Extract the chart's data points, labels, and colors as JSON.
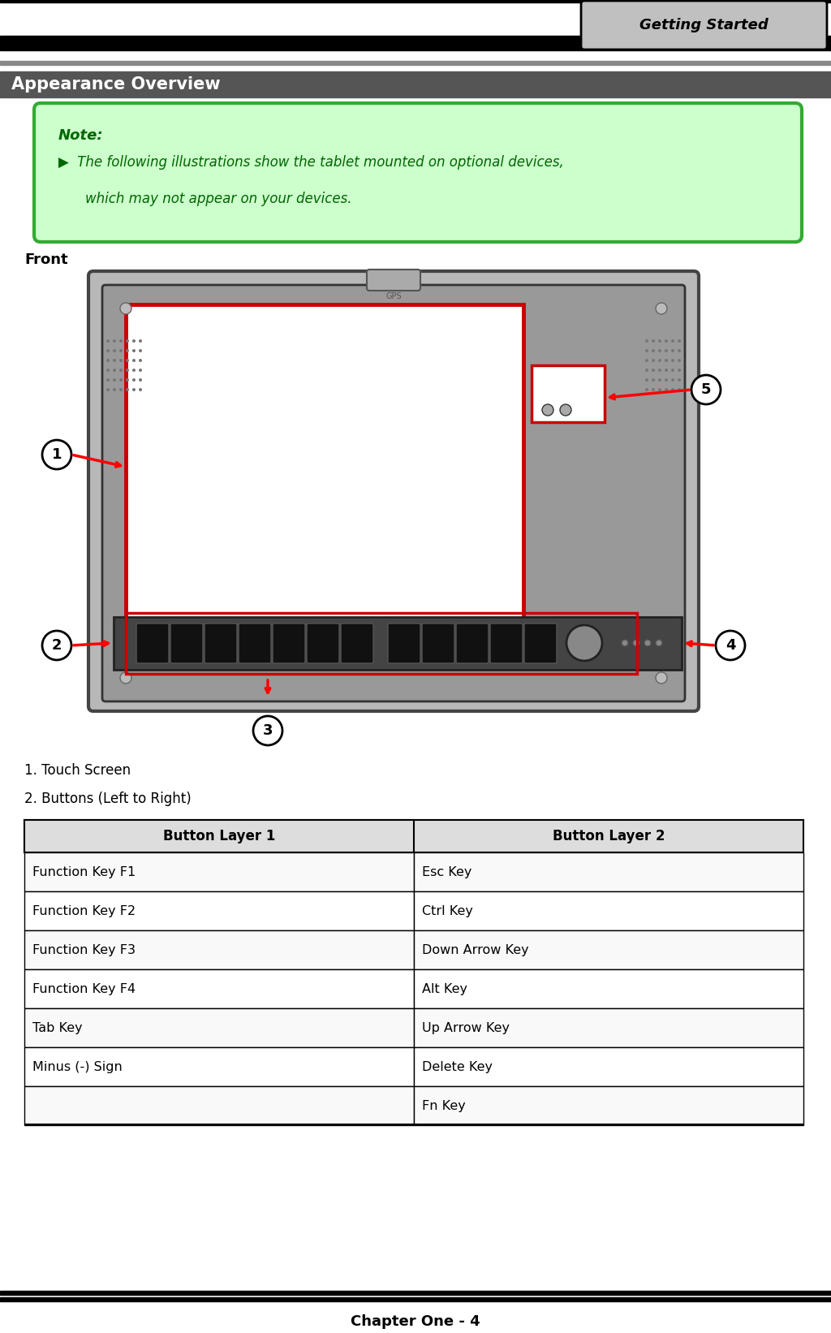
{
  "page_title": "Getting Started",
  "section_title": "Appearance Overview",
  "note_title": "Note:",
  "note_text_line1": "The following illustrations show the tablet mounted on optional devices,",
  "note_text_line2": "which may not appear on your devices.",
  "front_label": "Front",
  "item1": "1. Touch Screen",
  "item2": "2. Buttons (Left to Right)",
  "table_header": [
    "Button Layer 1",
    "Button Layer 2"
  ],
  "table_rows": [
    [
      "Function Key F1",
      "Esc Key"
    ],
    [
      "Function Key F2",
      "Ctrl Key"
    ],
    [
      "Function Key F3",
      "Down Arrow Key"
    ],
    [
      "Function Key F4",
      "Alt Key"
    ],
    [
      "Tab Key",
      "Up Arrow Key"
    ],
    [
      "Minus (-) Sign",
      "Delete Key"
    ],
    [
      "",
      "Fn Key"
    ]
  ],
  "chapter_footer": "Chapter One - 4",
  "bg_color": "#ffffff",
  "header_bg": "#555555",
  "header_tab_bg": "#c0c0c0",
  "section_bg": "#555555",
  "note_bg": "#ccffcc",
  "note_border": "#33aa33",
  "note_color": "#006600",
  "note_title_color": "#006600",
  "tablet_bg": "#dddddd",
  "screen_border": "#cc0000",
  "table_header_bg": "#dddddd"
}
